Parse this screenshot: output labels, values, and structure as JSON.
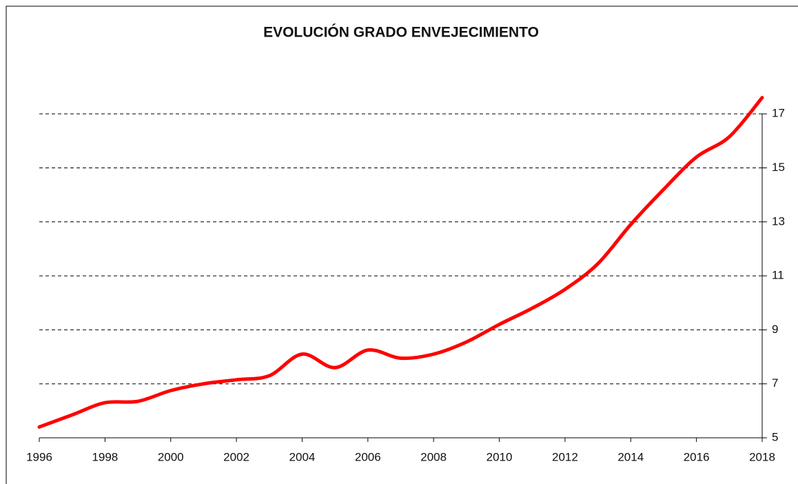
{
  "chart_data": {
    "type": "line",
    "title": "EVOLUCIÓN GRADO ENVEJECIMIENTO",
    "series": [
      {
        "name": "Grado envejecimiento",
        "color": "#ff0000",
        "x": [
          1996,
          1997,
          1998,
          1999,
          2000,
          2001,
          2002,
          2003,
          2004,
          2005,
          2006,
          2007,
          2008,
          2009,
          2010,
          2011,
          2012,
          2013,
          2014,
          2015,
          2016,
          2017,
          2018
        ],
        "values": [
          5.4,
          5.85,
          6.3,
          6.35,
          6.75,
          7.0,
          7.15,
          7.3,
          8.1,
          7.6,
          8.25,
          7.95,
          8.1,
          8.55,
          9.2,
          9.8,
          10.5,
          11.45,
          12.9,
          14.2,
          15.4,
          16.15,
          17.6
        ]
      }
    ],
    "xlim": [
      1996,
      2018
    ],
    "xticks": [
      1996,
      1998,
      2000,
      2002,
      2004,
      2006,
      2008,
      2010,
      2012,
      2014,
      2016,
      2018
    ],
    "ylim": [
      5,
      18
    ],
    "yticks": [
      5,
      7,
      9,
      11,
      13,
      15,
      17
    ],
    "grid": true
  }
}
